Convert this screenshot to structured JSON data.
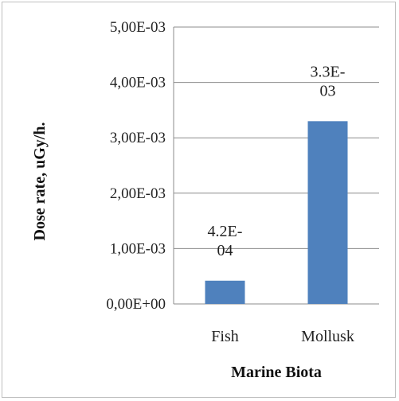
{
  "chart_data": {
    "type": "bar",
    "categories": [
      "Fish",
      "Mollusk"
    ],
    "values": [
      0.00042,
      0.0033
    ],
    "data_labels": [
      [
        "4.2E-",
        "04"
      ],
      [
        "3.3E-",
        "03"
      ]
    ],
    "xlabel": "Marine Biota",
    "ylabel": "Dose rate, uGy/h.",
    "ylim": [
      0,
      0.005
    ],
    "yticks": [
      0,
      0.001,
      0.002,
      0.003,
      0.004,
      0.005
    ],
    "ytick_labels": [
      "0,00E+00",
      "1,00E-03",
      "2,00E-03",
      "3,00E-03",
      "4,00E-03",
      "5,00E-03"
    ],
    "grid": true,
    "bar_color": "#4f81bd"
  }
}
